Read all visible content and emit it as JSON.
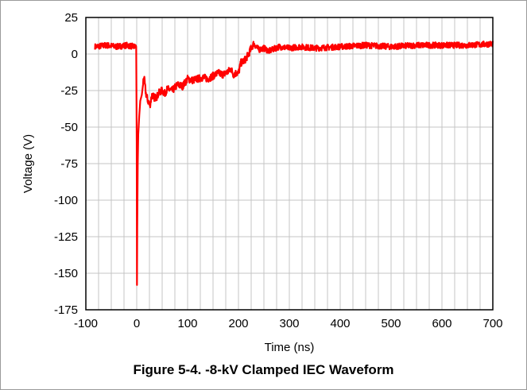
{
  "caption": "Figure 5-4. -8-kV Clamped IEC Waveform",
  "colors": {
    "trace": "#ff0000",
    "grid": "#c4c4c4",
    "axis": "#000000"
  },
  "chart_data": {
    "type": "line",
    "title": "",
    "xlabel": "Time (ns)",
    "ylabel": "Voltage (V)",
    "xlim": [
      -100,
      700
    ],
    "ylim": [
      -175,
      25
    ],
    "xticks": [
      -100,
      0,
      100,
      200,
      300,
      400,
      500,
      600,
      700
    ],
    "yticks": [
      25,
      0,
      -25,
      -50,
      -75,
      -100,
      -125,
      -150,
      -175
    ],
    "grid": true,
    "series": [
      {
        "color": "#ff0000",
        "x": [
          -82,
          -60,
          -40,
          -20,
          -5,
          -1,
          0,
          0.5,
          1,
          2,
          3,
          5,
          7,
          10,
          14,
          18,
          22,
          26,
          30,
          35,
          40,
          45,
          50,
          55,
          60,
          70,
          80,
          90,
          100,
          110,
          120,
          130,
          140,
          150,
          160,
          170,
          180,
          185,
          190,
          195,
          200,
          205,
          210,
          215,
          220,
          225,
          230,
          240,
          250,
          260,
          280,
          300,
          320,
          350,
          400,
          450,
          500,
          550,
          600,
          650,
          700
        ],
        "y": [
          5,
          6,
          5,
          6,
          5,
          5,
          -60,
          -158,
          -120,
          -75,
          -55,
          -42,
          -32,
          -28,
          -15,
          -27,
          -32,
          -35,
          -28,
          -30,
          -29,
          -26,
          -25,
          -27,
          -24,
          -25,
          -21,
          -22,
          -17,
          -18,
          -17,
          -16,
          -17,
          -15,
          -13,
          -14,
          -12,
          -10,
          -14,
          -13,
          -13,
          -6,
          -5,
          -3,
          0,
          4,
          7,
          3,
          4,
          2,
          5,
          4,
          5,
          4,
          5,
          6,
          5,
          6,
          6,
          6,
          7
        ]
      }
    ]
  }
}
